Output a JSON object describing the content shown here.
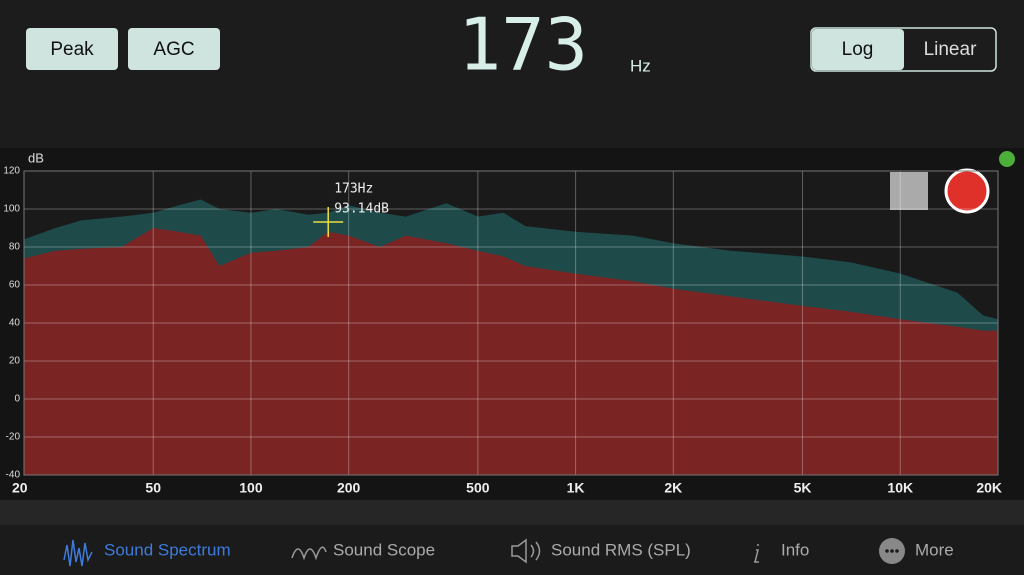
{
  "header": {
    "buttons": [
      "Peak",
      "AGC"
    ],
    "frequency_display": "173",
    "frequency_unit": "Hz",
    "scale_options": [
      "Log",
      "Linear"
    ],
    "selected_scale": 0
  },
  "chart_data": {
    "type": "area",
    "y_label": "dB",
    "x_scale": "log",
    "grid": true,
    "xlim": [
      20,
      20000
    ],
    "ylim": [
      -40,
      120
    ],
    "xticks": [
      20,
      50,
      100,
      200,
      500,
      {
        "value": 1000,
        "label": "1K"
      },
      {
        "value": 2000,
        "label": "2K"
      },
      {
        "value": 5000,
        "label": "5K"
      },
      {
        "value": 10000,
        "label": "10K"
      },
      {
        "value": 20000,
        "label": "20K"
      }
    ],
    "yticks": [
      -40,
      -20,
      0,
      20,
      40,
      60,
      80,
      100,
      120
    ],
    "x": [
      20,
      25,
      30,
      40,
      50,
      60,
      70,
      80,
      100,
      120,
      150,
      173,
      200,
      250,
      300,
      400,
      500,
      600,
      700,
      1000,
      1500,
      2000,
      3000,
      5000,
      7000,
      10000,
      15000,
      18000,
      20000
    ],
    "series": [
      {
        "color": "#1f4a4a",
        "values": [
          84,
          90,
          94,
          96,
          98,
          102,
          105,
          100,
          98,
          100,
          97,
          98,
          102,
          98,
          96,
          103,
          96,
          98,
          91,
          88,
          86,
          82,
          78,
          75,
          72,
          66,
          56,
          44,
          42
        ]
      },
      {
        "color": "#7a2424",
        "values": [
          74,
          78,
          79,
          80,
          90,
          88,
          86,
          70,
          77,
          78,
          80,
          88,
          86,
          80,
          86,
          82,
          78,
          75,
          70,
          66,
          62,
          58,
          54,
          49,
          46,
          42,
          38,
          36,
          36
        ]
      }
    ],
    "cursor": {
      "x": 173,
      "y": 93.14,
      "x_text": "173Hz",
      "y_text": "93.14dB",
      "color": "#e8e040"
    }
  },
  "tabs": [
    "Sound Spectrum",
    "Sound Scope",
    "Sound RMS (SPL)",
    "Info",
    "More"
  ],
  "active_tab": 0
}
